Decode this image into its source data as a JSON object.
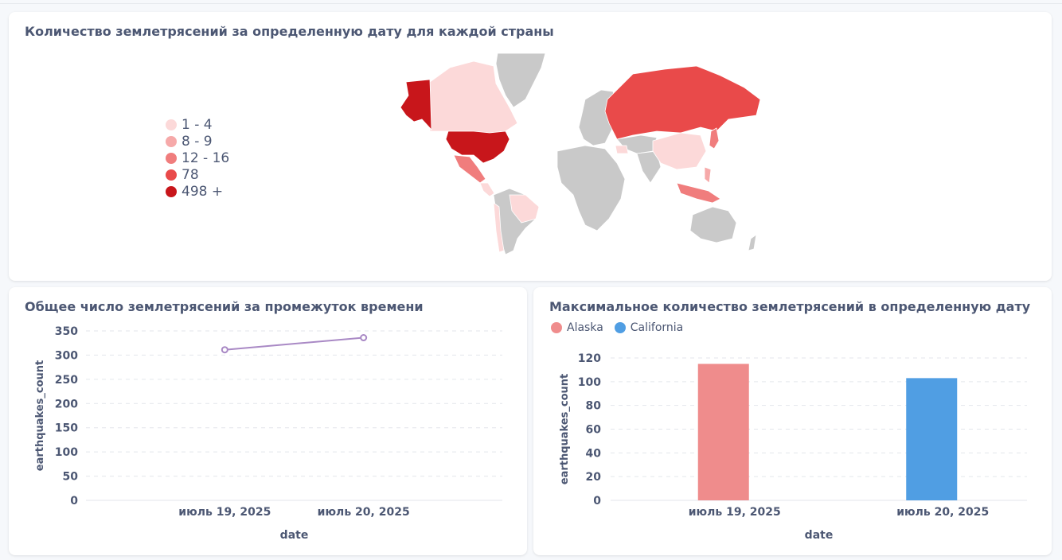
{
  "map_card": {
    "title": "Количество землетрясений за определенную дату для каждой страны",
    "legend": [
      {
        "label": "1 - 4",
        "color": "#fcd9d9"
      },
      {
        "label": "8 - 9",
        "color": "#f6a9a9"
      },
      {
        "label": "12 - 16",
        "color": "#f07d7d"
      },
      {
        "label": "78",
        "color": "#e94a4a"
      },
      {
        "label": "498 +",
        "color": "#c8161b"
      }
    ],
    "no_data_color": "#c9c9c9"
  },
  "line_card": {
    "title": "Общее число землетрясений за промежуток времени"
  },
  "bar_card": {
    "title": "Максимальное количество землетрясений в определенную дату",
    "legend": [
      {
        "label": "Alaska",
        "color": "#ef8c8c"
      },
      {
        "label": "California",
        "color": "#509ee3"
      }
    ]
  },
  "chart_data": [
    {
      "type": "line",
      "x": [
        "июль 19, 2025",
        "июль 20, 2025"
      ],
      "series": [
        {
          "values": [
            311,
            336
          ],
          "color": "#a989c5"
        }
      ],
      "xlabel": "date",
      "ylabel": "earthquakes_count",
      "ylim": [
        0,
        350
      ],
      "yticks": [
        0,
        50,
        100,
        150,
        200,
        250,
        300,
        350
      ],
      "grid": true
    },
    {
      "type": "bar",
      "categories": [
        "июль 19, 2025",
        "июль 20, 2025"
      ],
      "series": [
        {
          "name": "Alaska",
          "values": [
            115,
            0
          ],
          "color": "#ef8c8c"
        },
        {
          "name": "California",
          "values": [
            0,
            103
          ],
          "color": "#509ee3"
        }
      ],
      "xlabel": "date",
      "ylabel": "earthquakes_count",
      "ylim": [
        0,
        120
      ],
      "yticks": [
        0,
        20,
        40,
        60,
        80,
        100,
        120
      ],
      "legend": "top-left",
      "grid": true
    }
  ]
}
